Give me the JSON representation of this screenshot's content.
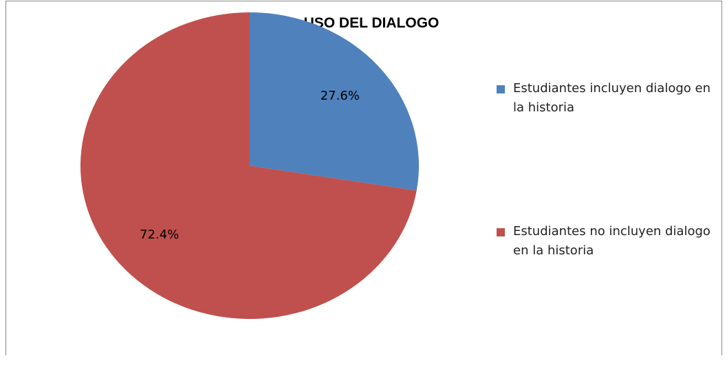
{
  "chart_data": {
    "type": "pie",
    "title": "USO DEL DIALOGO",
    "categories": [
      "Estudiantes incluyen dialogo en la historia",
      "Estudiantes no incluyen dialogo en la historia"
    ],
    "values": [
      27.6,
      72.4
    ],
    "value_labels": [
      "27.6%",
      "72.4%"
    ],
    "colors": [
      "#4f81bd",
      "#c0504d"
    ]
  }
}
